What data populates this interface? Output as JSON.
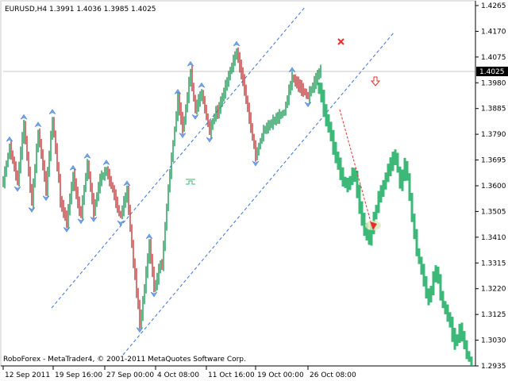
{
  "chart_data": {
    "type": "ohlc-bar",
    "title": "EURUSD,H4  1.3991 1.4036 1.3985 1.4025",
    "watermark": "RoboForex - MetaTrader4, © 2001-2011 MetaQuotes Software Corp.",
    "current_price": "1.4025",
    "y_ticks": [
      "1.4265",
      "1.4170",
      "1.4075",
      "1.3980",
      "1.3885",
      "1.3790",
      "1.3695",
      "1.3600",
      "1.3505",
      "1.3410",
      "1.3315",
      "1.3220",
      "1.3125",
      "1.3030",
      "1.2935"
    ],
    "x_ticks": [
      "12 Sep 2011",
      "19 Sep 16:00",
      "27 Sep 00:00",
      "4 Oct 08:00",
      "11 Oct 16:00",
      "19 Oct 00:00",
      "26 Oct 08:00"
    ],
    "ylim": [
      1.2935,
      1.4265
    ],
    "series": [
      {
        "role": "history",
        "color": "#2f2f2f",
        "x": [
          0,
          2,
          4,
          6,
          8,
          10,
          12,
          14,
          16,
          18,
          20,
          22,
          24,
          26,
          28,
          30,
          32,
          34,
          36,
          38,
          40,
          42,
          44,
          46,
          48,
          50,
          52,
          54,
          56,
          58,
          60,
          62,
          64,
          66,
          68,
          70,
          72,
          74,
          76,
          78,
          80,
          82,
          84,
          86,
          88,
          90,
          92,
          94,
          96,
          98,
          100,
          102,
          104,
          106,
          108,
          110,
          112,
          114,
          116,
          118,
          120,
          122,
          124,
          126,
          128,
          130,
          132,
          134,
          136,
          138,
          140,
          142,
          144,
          146,
          148,
          150,
          152,
          154,
          156,
          158,
          160,
          162,
          164,
          166,
          168,
          170,
          172,
          174,
          176,
          178,
          180,
          182,
          184,
          186,
          188,
          190,
          192,
          194,
          196,
          198,
          200,
          202,
          204,
          206,
          208,
          210,
          212,
          214,
          216,
          218,
          220,
          222,
          224,
          226,
          228,
          230,
          232,
          234,
          236,
          238,
          240,
          242,
          244,
          246,
          248,
          250,
          252,
          254,
          256,
          258,
          260,
          262,
          264,
          266,
          268,
          270,
          272,
          274,
          276,
          278,
          280,
          282,
          284,
          286,
          288,
          290,
          292,
          294,
          296,
          298,
          300,
          302,
          304,
          306,
          308,
          310,
          312,
          314,
          316,
          318,
          320,
          322,
          324,
          326,
          328,
          330,
          332,
          334,
          336,
          338,
          340,
          342,
          344,
          346,
          348,
          350,
          352,
          354,
          356,
          358,
          360,
          362,
          364,
          366,
          368,
          370,
          372,
          374,
          376,
          378,
          380,
          382,
          384,
          386,
          388,
          390,
          392,
          394,
          396,
          398,
          400
        ],
        "close": [
          1.3615,
          1.3647,
          1.3679,
          1.3711,
          1.3743,
          1.3718,
          1.3693,
          1.3667,
          1.3642,
          1.3617,
          1.3669,
          1.3721,
          1.3773,
          1.3825,
          1.3767,
          1.3709,
          1.3651,
          1.3593,
          1.354,
          1.3604,
          1.3669,
          1.3733,
          1.3797,
          1.3756,
          1.3716,
          1.3675,
          1.3634,
          1.3583,
          1.3648,
          1.3714,
          1.3779,
          1.3844,
          1.3788,
          1.3733,
          1.3677,
          1.3621,
          1.3542,
          1.3524,
          1.3505,
          1.3486,
          1.3467,
          1.351,
          1.3552,
          1.3594,
          1.3637,
          1.3605,
          1.3573,
          1.354,
          1.3508,
          1.3498,
          1.3543,
          1.3589,
          1.3635,
          1.3681,
          1.3637,
          1.3593,
          1.3549,
          1.3505,
          1.3534,
          1.3564,
          1.3593,
          1.3623,
          1.3631,
          1.364,
          1.3648,
          1.3657,
          1.3639,
          1.3621,
          1.3603,
          1.3585,
          1.3563,
          1.3541,
          1.3519,
          1.3497,
          1.3491,
          1.3513,
          1.3536,
          1.3558,
          1.358,
          1.3513,
          1.3447,
          1.3381,
          1.3315,
          1.3269,
          1.3212,
          1.3155,
          1.3097,
          1.3121,
          1.3173,
          1.3226,
          1.3279,
          1.3331,
          1.3384,
          1.3332,
          1.328,
          1.3228,
          1.3233,
          1.326,
          1.3287,
          1.3314,
          1.3305,
          1.3377,
          1.3448,
          1.352,
          1.3591,
          1.3646,
          1.3701,
          1.3755,
          1.3809,
          1.3864,
          1.3918,
          1.3884,
          1.3849,
          1.3815,
          1.384,
          1.3885,
          1.3931,
          1.3976,
          1.4021,
          1.3971,
          1.392,
          1.3883,
          1.3898,
          1.3913,
          1.3927,
          1.3942,
          1.3913,
          1.3885,
          1.3856,
          1.3827,
          1.3799,
          1.3818,
          1.3837,
          1.3856,
          1.3875,
          1.3869,
          1.3888,
          1.3907,
          1.3927,
          1.3946,
          1.3966,
          1.3985,
          1.4004,
          1.4024,
          1.4042,
          1.406,
          1.4078,
          1.4095,
          1.4069,
          1.4042,
          1.4016,
          1.3989,
          1.3955,
          1.392,
          1.3885,
          1.385,
          1.3816,
          1.3781,
          1.3746,
          1.3711,
          1.3725,
          1.3745,
          1.3765,
          1.3784,
          1.3804,
          1.3809,
          1.3815,
          1.382,
          1.3826,
          1.3832,
          1.3837,
          1.3843,
          1.3848,
          1.3853,
          1.3858,
          1.3862,
          1.3867,
          1.3872,
          1.3897,
          1.3923,
          1.3948,
          1.3974,
          1.3999,
          1.3992,
          1.3985,
          1.3978,
          1.3971,
          1.3964,
          1.3957,
          1.395,
          1.3943,
          1.3936,
          1.3929,
          1.3942,
          1.3955,
          1.3968,
          1.398,
          1.3993,
          1.4006,
          1.4019,
          1.4025
        ]
      },
      {
        "role": "forecast",
        "color": "#3cb878",
        "x": [
          398,
          401,
          404,
          407,
          410,
          413,
          416,
          419,
          422,
          425,
          428,
          431,
          434,
          437,
          440,
          443,
          446,
          449,
          452,
          455,
          458,
          461,
          464,
          467,
          470,
          473,
          476,
          479,
          482,
          485,
          488,
          491,
          494,
          497,
          500,
          503,
          506,
          509,
          512,
          515,
          518,
          521,
          524,
          527,
          530,
          533,
          536,
          539,
          542,
          545,
          548,
          551,
          554,
          557,
          560,
          563,
          566,
          569,
          572,
          575,
          578,
          581,
          584,
          587,
          590
        ],
        "close": [
          1.396,
          1.3928,
          1.388,
          1.384,
          1.382,
          1.378,
          1.374,
          1.3705,
          1.368,
          1.3645,
          1.362,
          1.3605,
          1.36,
          1.362,
          1.365,
          1.363,
          1.358,
          1.352,
          1.3475,
          1.344,
          1.342,
          1.34,
          1.344,
          1.3485,
          1.352,
          1.356,
          1.358,
          1.36,
          1.3635,
          1.366,
          1.368,
          1.37,
          1.371,
          1.366,
          1.36,
          1.364,
          1.368,
          1.363,
          1.356,
          1.348,
          1.342,
          1.336,
          1.332,
          1.329,
          1.325,
          1.32,
          1.318,
          1.322,
          1.326,
          1.329,
          1.325,
          1.32,
          1.316,
          1.314,
          1.312,
          1.309,
          1.305,
          1.302,
          1.304,
          1.307,
          1.305,
          1.301,
          1.298,
          1.296,
          1.2945
        ]
      }
    ]
  }
}
